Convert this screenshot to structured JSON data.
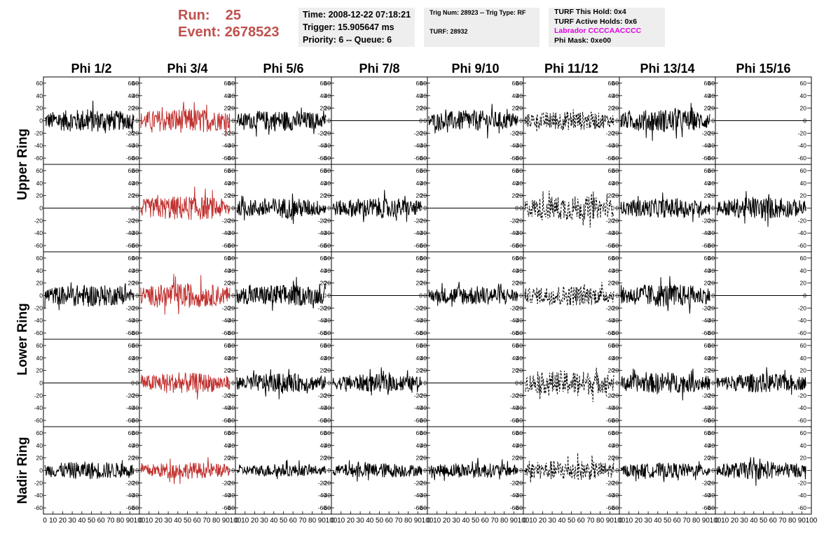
{
  "header": {
    "run_label": "Run:",
    "run_value": "25",
    "event_label": "Event:",
    "event_value": "2678523"
  },
  "info1": {
    "time": "Time: 2008-12-22 07:18:21",
    "trigger": "Trigger: 15.905647 ms",
    "priority": "Priority: 6 -- Queue: 6"
  },
  "info2": {
    "trig": "Trig Num: 28923 -- Trig Type: RF",
    "turf": "TURF: 28932"
  },
  "info3": {
    "hold": "TURF This Hold: 0x4",
    "active": "TURF Active Holds: 0x6",
    "labrador": "Labrador CCCCAACCCC",
    "phimask": "Phi Mask: 0xe00"
  },
  "colors": {
    "run_text": "#c0504d",
    "labrador_text": "#e000e0",
    "trace_black": "#000000",
    "trace_red": "#c0312f",
    "info_bg": "#eeeeee"
  },
  "chart_data": {
    "type": "line",
    "columns": [
      "Phi 1/2",
      "Phi 3/4",
      "Phi 5/6",
      "Phi 7/8",
      "Phi 9/10",
      "Phi 11/12",
      "Phi 13/14",
      "Phi 15/16"
    ],
    "rows": [
      "Upper Ring",
      "Lower Ring",
      "Nadir Ring"
    ],
    "ylim": [
      -70,
      70
    ],
    "y_ticks": [
      -60,
      -40,
      -20,
      0,
      20,
      40,
      60
    ],
    "xlim": [
      0,
      100
    ],
    "x_tick_labels": [
      "0",
      "10",
      "20",
      "30",
      "40",
      "50",
      "60",
      "70",
      "80",
      "90",
      "100"
    ],
    "grid": false,
    "panels": [
      [
        {
          "style": "solid",
          "amp": 17
        },
        {
          "style": "red",
          "amp": 18
        },
        {
          "style": "solid",
          "amp": 15
        },
        {
          "style": "flat",
          "amp": 0
        },
        {
          "style": "solid",
          "amp": 15
        },
        {
          "style": "dashed",
          "amp": 14
        },
        {
          "style": "solid",
          "amp": 17
        },
        {
          "style": "flat",
          "amp": 0
        }
      ],
      [
        {
          "style": "flat",
          "amp": 0
        },
        {
          "style": "red",
          "amp": 18
        },
        {
          "style": "solid",
          "amp": 15
        },
        {
          "style": "solid",
          "amp": 15
        },
        {
          "style": "flat",
          "amp": 0
        },
        {
          "style": "dashed",
          "amp": 18
        },
        {
          "style": "solid",
          "amp": 14
        },
        {
          "style": "solid",
          "amp": 16
        }
      ],
      [
        {
          "style": "solid",
          "amp": 16
        },
        {
          "style": "red",
          "amp": 18
        },
        {
          "style": "solid",
          "amp": 16
        },
        {
          "style": "flat",
          "amp": 0
        },
        {
          "style": "solid",
          "amp": 14
        },
        {
          "style": "dashed",
          "amp": 15
        },
        {
          "style": "solid",
          "amp": 17
        },
        {
          "style": "flat",
          "amp": 0
        }
      ],
      [
        {
          "style": "flat",
          "amp": 0
        },
        {
          "style": "red",
          "amp": 15
        },
        {
          "style": "solid",
          "amp": 14
        },
        {
          "style": "solid",
          "amp": 13
        },
        {
          "style": "flat",
          "amp": 0
        },
        {
          "style": "dashed",
          "amp": 18
        },
        {
          "style": "solid",
          "amp": 15
        },
        {
          "style": "solid",
          "amp": 14
        }
      ],
      [
        {
          "style": "solid",
          "amp": 13
        },
        {
          "style": "red",
          "amp": 12
        },
        {
          "style": "solid",
          "amp": 9
        },
        {
          "style": "solid",
          "amp": 11
        },
        {
          "style": "solid",
          "amp": 11
        },
        {
          "style": "dashed",
          "amp": 15
        },
        {
          "style": "solid",
          "amp": 11
        },
        {
          "style": "solid",
          "amp": 13
        }
      ]
    ]
  }
}
